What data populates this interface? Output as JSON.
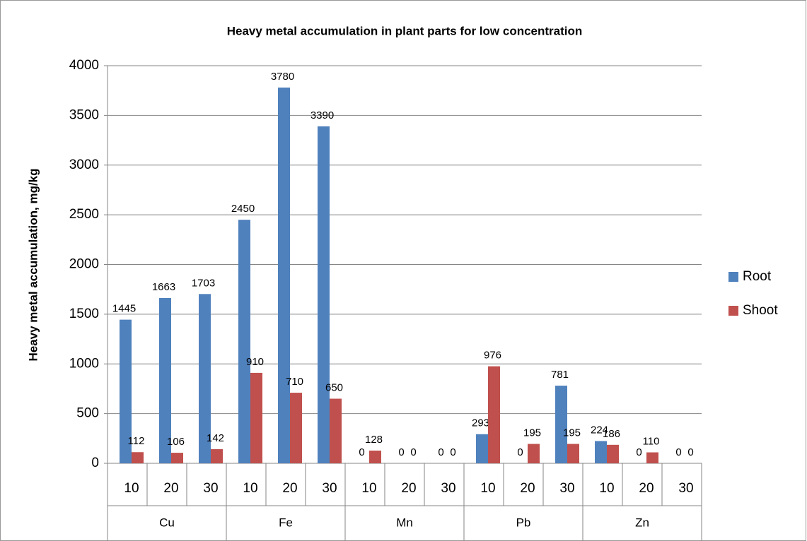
{
  "chart_data": {
    "type": "bar",
    "title": "Heavy metal accumulation in plant parts for low concentration",
    "y_label": "Heavy metal accumulation, mg/kg",
    "categories": [
      "10",
      "20",
      "30",
      "10",
      "20",
      "30",
      "10",
      "20",
      "30",
      "10",
      "20",
      "30",
      "10",
      "20",
      "30"
    ],
    "groups": [
      "Cu",
      "Fe",
      "Mn",
      "Pb",
      "Zn"
    ],
    "series": [
      {
        "name": "Root",
        "color": "#4f81bd",
        "values": [
          1445,
          1663,
          1703,
          2450,
          3780,
          3390,
          0,
          0,
          0,
          293,
          0,
          781,
          224,
          0,
          0
        ]
      },
      {
        "name": "Shoot",
        "color": "#c0504d",
        "values": [
          112,
          106,
          142,
          910,
          710,
          650,
          128,
          0,
          0,
          976,
          195,
          195,
          186,
          110,
          0
        ]
      }
    ],
    "ylim": [
      0,
      4000
    ],
    "yticks": [
      0,
      500,
      1000,
      1500,
      2000,
      2500,
      3000,
      3500,
      4000
    ],
    "grid": true,
    "legend": "right"
  }
}
